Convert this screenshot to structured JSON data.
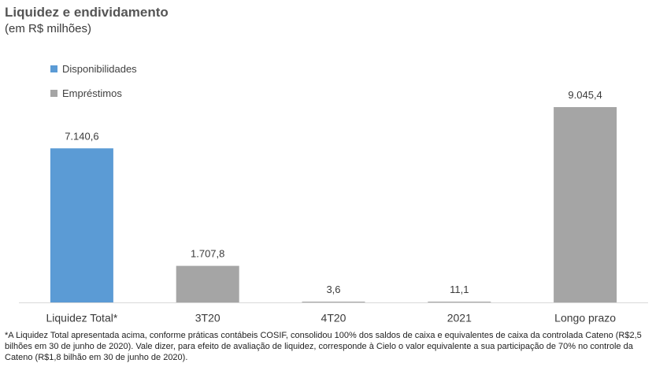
{
  "chart_data": {
    "type": "bar",
    "title": "Liquidez e endividamento",
    "subtitle": "(em R$ milhões)",
    "categories": [
      "Liquidez Total*",
      "3T20",
      "4T20",
      "2021",
      "Longo prazo"
    ],
    "values": [
      7140.6,
      1707.8,
      3.6,
      11.1,
      9045.4
    ],
    "value_labels": [
      "7.140,6",
      "1.707,8",
      "3,6",
      "11,1",
      "9.045,4"
    ],
    "series_of_bar": [
      "Disponibilidades",
      "Empréstimos",
      "Empréstimos",
      "Empréstimos",
      "Empréstimos"
    ],
    "legend": [
      {
        "name": "Disponibilidades",
        "color": "#5b9bd5"
      },
      {
        "name": "Empréstimos",
        "color": "#a5a5a5"
      }
    ],
    "legend_position": "top-left",
    "ylim": [
      0,
      9045.4
    ],
    "grid": false
  },
  "footnote": "*A Liquidez Total apresentada acima, conforme práticas contábeis COSIF, consolidou 100% dos saldos de caixa e equivalentes de caixa da controlada Cateno (R$2,5 bilhões em 30 de junho de 2020). Vale dizer, para efeito de avaliação de liquidez, corresponde à Cielo o valor equivalente a sua participação de 70% no controle da Cateno (R$1,8 bilhão em 30 de junho de 2020)."
}
